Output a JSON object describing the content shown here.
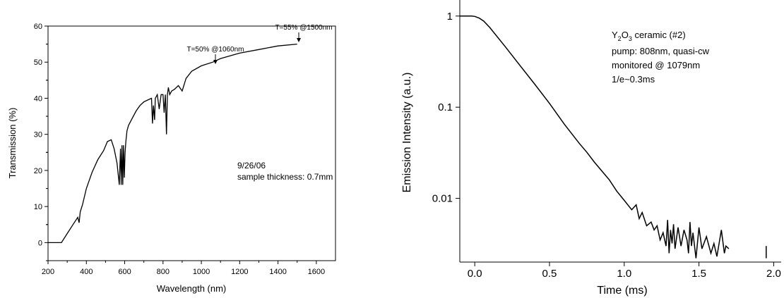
{
  "chart_data": [
    {
      "type": "line",
      "xlabel": "Wavelength (nm)",
      "ylabel": "Transmission (%)",
      "xlim": [
        200,
        1700
      ],
      "ylim": [
        -5,
        60
      ],
      "x_ticks": [
        "200",
        "400",
        "600",
        "800",
        "1000",
        "1200",
        "1400",
        "1600"
      ],
      "y_ticks": [
        "0",
        "10",
        "20",
        "30",
        "40",
        "50",
        "60"
      ],
      "annotations": {
        "a1060": "T=50% @1060nm",
        "a1500": "T=55% @1500nm",
        "note1": "9/26/06",
        "note2": "sample thickness: 0.7mm"
      },
      "series": [
        {
          "x": [
            200,
            270,
            300,
            330,
            355,
            362,
            368,
            380,
            400,
            430,
            460,
            490,
            510,
            530,
            545,
            560,
            572,
            578,
            582,
            586,
            590,
            594,
            598,
            602,
            606,
            612,
            620,
            640,
            660,
            680,
            700,
            720,
            740,
            745,
            750,
            756,
            760,
            770,
            780,
            790,
            800,
            806,
            812,
            818,
            823,
            828,
            835,
            845,
            860,
            880,
            900,
            920,
            950,
            1000,
            1060,
            1100,
            1200,
            1300,
            1400,
            1500
          ],
          "y": [
            0,
            0,
            2.5,
            5,
            7,
            5.5,
            8.5,
            10.5,
            15,
            19.5,
            23,
            25.5,
            28,
            28.5,
            26,
            22,
            16,
            26,
            16,
            27,
            16,
            27,
            18,
            25,
            28,
            31,
            32.5,
            34.5,
            36.5,
            38,
            39,
            39.5,
            40,
            33,
            38,
            34,
            40,
            41,
            37,
            41,
            41,
            36,
            41,
            30,
            41,
            43,
            41,
            42,
            42.5,
            43.5,
            42,
            45.5,
            47.5,
            49,
            50,
            51,
            52.5,
            53.5,
            54.5,
            55
          ]
        }
      ]
    },
    {
      "type": "line",
      "xlabel": "Time (ms)",
      "ylabel": "Emission Intensity (a.u.)",
      "y_scale": "log",
      "xlim": [
        -0.1,
        2.05
      ],
      "ylim": [
        0.002,
        1.5
      ],
      "x_ticks": [
        "0.0",
        "0.5",
        "1.0",
        "1.5",
        "2.0"
      ],
      "y_ticks": [
        "0.01",
        "0.1",
        "1"
      ],
      "legend_text": {
        "line1_pre": "Y",
        "line1_sub1": "2",
        "line1_mid": "O",
        "line1_sub2": "3",
        "line1_post": " ceramic (#2)",
        "line2": "pump: 808nm, quasi-cw",
        "line3": "monitored @ 1079nm",
        "line4": "1/e~0.3ms"
      },
      "series": [
        {
          "x": [
            -0.1,
            -0.02,
            0.0,
            0.03,
            0.06,
            0.1,
            0.2,
            0.3,
            0.4,
            0.5,
            0.6,
            0.7,
            0.75,
            0.8,
            0.85,
            0.9,
            0.95,
            1.0,
            1.05,
            1.08,
            1.1,
            1.12,
            1.15,
            1.18,
            1.2,
            1.22,
            1.24,
            1.26,
            1.28,
            1.29,
            1.3,
            1.31,
            1.32,
            1.33,
            1.34,
            1.36,
            1.38,
            1.4,
            1.42,
            1.43,
            1.44,
            1.45,
            1.46,
            1.48,
            1.5,
            1.52,
            1.55,
            1.58,
            1.6,
            1.62,
            1.65,
            1.67,
            1.68,
            1.7
          ],
          "y": [
            1,
            1,
            0.99,
            0.95,
            0.88,
            0.75,
            0.47,
            0.29,
            0.18,
            0.11,
            0.065,
            0.04,
            0.032,
            0.025,
            0.02,
            0.016,
            0.012,
            0.0095,
            0.0075,
            0.0085,
            0.006,
            0.007,
            0.005,
            0.0055,
            0.0045,
            0.005,
            0.0035,
            0.0042,
            0.003,
            0.0058,
            0.0025,
            0.0045,
            0.0032,
            0.0052,
            0.0028,
            0.0048,
            0.003,
            0.0045,
            0.0035,
            0.0025,
            0.0055,
            0.003,
            0.0042,
            0.0022,
            0.0048,
            0.0028,
            0.0038,
            0.0025,
            0.0032,
            0.0023,
            0.0045,
            0.0025,
            0.003,
            0.0028
          ]
        },
        {
          "x": [
            1.95,
            1.95
          ],
          "y": [
            0.003,
            0.0022
          ]
        }
      ]
    }
  ]
}
